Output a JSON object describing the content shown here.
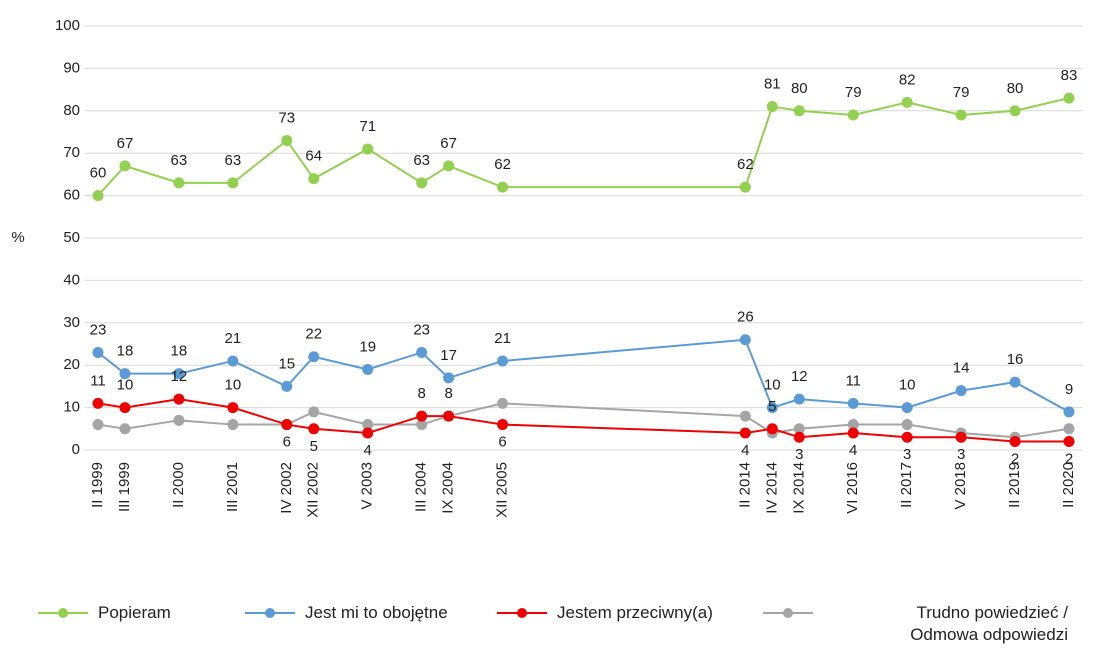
{
  "chart_data": {
    "type": "line",
    "y_label": "%",
    "categories": [
      "II 1999",
      "III 1999",
      null,
      "II 2000",
      null,
      "III 2001",
      null,
      "IV 2002",
      "XII 2002",
      null,
      "V 2003",
      null,
      "III 2004",
      "IX 2004",
      null,
      "XII 2005",
      null,
      null,
      null,
      null,
      null,
      null,
      null,
      null,
      "II 2014",
      "IV 2014",
      "IX 2014",
      null,
      "VI 2016",
      null,
      "II 2017",
      null,
      "V 2018",
      null,
      "II 2019",
      null,
      "II 2020"
    ],
    "span_gaps": true,
    "series": [
      {
        "name": "Popieram",
        "color": "#92d050",
        "data_labels": true,
        "values": [
          60,
          67,
          null,
          63,
          null,
          63,
          null,
          73,
          64,
          null,
          71,
          null,
          63,
          67,
          null,
          62,
          null,
          null,
          null,
          null,
          null,
          null,
          null,
          null,
          62,
          81,
          80,
          null,
          79,
          null,
          82,
          null,
          79,
          null,
          80,
          null,
          83
        ]
      },
      {
        "name": "Jest mi to obojętne",
        "color": "#5b9bd5",
        "data_labels": true,
        "values": [
          23,
          18,
          null,
          18,
          null,
          21,
          null,
          15,
          22,
          null,
          19,
          null,
          23,
          17,
          null,
          21,
          null,
          null,
          null,
          null,
          null,
          null,
          null,
          null,
          26,
          10,
          12,
          null,
          11,
          null,
          10,
          null,
          14,
          null,
          16,
          null,
          9
        ]
      },
      {
        "name": "Jestem przeciwny(a)",
        "color": "#ee0000",
        "data_labels": true,
        "values": [
          11,
          10,
          null,
          12,
          null,
          10,
          null,
          6,
          5,
          null,
          4,
          null,
          8,
          8,
          null,
          6,
          null,
          null,
          null,
          null,
          null,
          null,
          null,
          null,
          4,
          5,
          3,
          null,
          4,
          null,
          3,
          null,
          3,
          null,
          2,
          null,
          2
        ]
      },
      {
        "name": "Trudno powiedzieć / Odmowa odpowiedzi",
        "color": "#a5a5a5",
        "data_labels": false,
        "values": [
          6,
          5,
          null,
          7,
          null,
          6,
          null,
          6,
          9,
          null,
          6,
          null,
          6,
          8,
          null,
          11,
          null,
          null,
          null,
          null,
          null,
          null,
          null,
          null,
          8,
          4,
          5,
          null,
          6,
          null,
          6,
          null,
          4,
          null,
          3,
          null,
          5
        ]
      }
    ],
    "ylim": [
      0,
      100
    ],
    "yticks": [
      0,
      10,
      20,
      30,
      40,
      50,
      60,
      70,
      80,
      90,
      100
    ],
    "grid": true,
    "legend": "bottom"
  }
}
